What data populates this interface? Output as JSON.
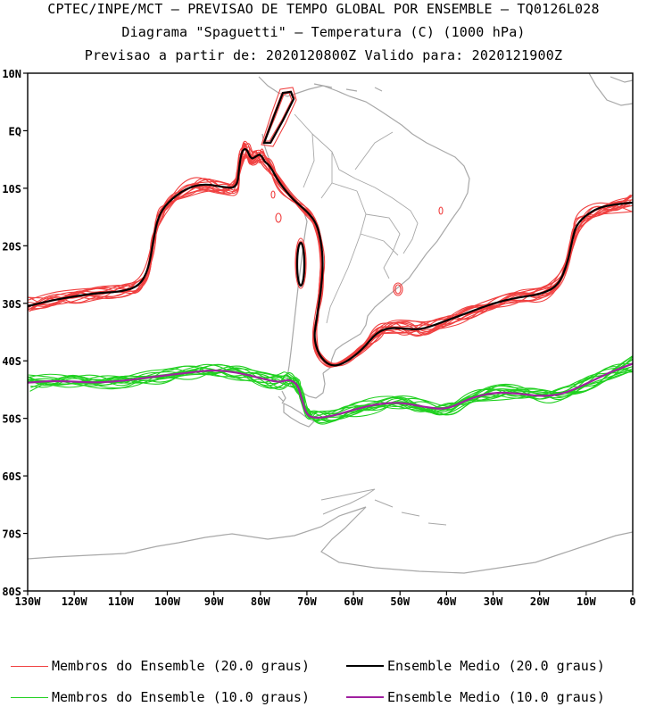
{
  "header": {
    "line1": "CPTEC/INPE/MCT — PREVISAO DE TEMPO GLOBAL POR ENSEMBLE — TQ0126L028",
    "line2": "Diagrama \"Spaguetti\" — Temperatura (C) (1000 hPa)",
    "line3": "Previsao a partir de: 2020120800Z  Valido para: 2020121900Z"
  },
  "axes": {
    "lat_labels": [
      "10N",
      "EQ",
      "10S",
      "20S",
      "30S",
      "40S",
      "50S",
      "60S",
      "70S",
      "80S"
    ],
    "lon_labels": [
      "130W",
      "120W",
      "110W",
      "100W",
      "90W",
      "80W",
      "70W",
      "60W",
      "50W",
      "40W",
      "30W",
      "20W",
      "10W",
      "0"
    ]
  },
  "colors": {
    "member20": "#f04040",
    "mean20": "#000000",
    "member10": "#20d020",
    "mean10": "#a020a0",
    "coast": "#a8a8a8"
  },
  "legend": {
    "members20": "Membros do Ensemble (20.0 graus)",
    "mean20": "Ensemble Medio (20.0 graus)",
    "members10": "Membros do Ensemble (10.0 graus)",
    "mean10": "Ensemble Medio (10.0 graus)"
  }
}
